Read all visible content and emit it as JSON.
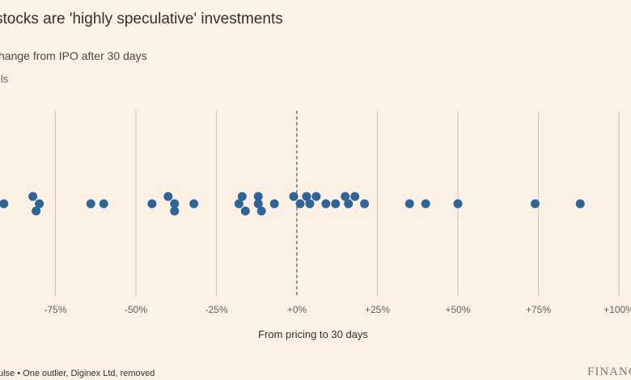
{
  "header": {
    "title": "stocks are 'highly speculative' investments",
    "subtitle": "hange from IPO after 30 days",
    "legend_fragment": "ils"
  },
  "footer": {
    "source": "ulse • One outlier, Diginex Ltd, removed",
    "brand": "FINANC"
  },
  "chart_data": {
    "type": "scatter",
    "title": "stocks are 'highly speculative' investments",
    "subtitle": "hange from IPO after 30 days",
    "xlabel": "From pricing to 30 days",
    "ylabel": "",
    "xlim": [
      -92,
      100
    ],
    "xticks": [
      -75,
      -50,
      -25,
      0,
      25,
      50,
      75,
      100
    ],
    "xtick_labels": [
      "-75%",
      "-50%",
      "-25%",
      "+0%",
      "+25%",
      "+50%",
      "+75%",
      "+100%"
    ],
    "reference_line": 0,
    "grid": "vertical",
    "marker_color": "#2e6496",
    "series": [
      {
        "values": [
          {
            "x": -91,
            "lane": 0
          },
          {
            "x": -82,
            "lane": 1
          },
          {
            "x": -80,
            "lane": 0
          },
          {
            "x": -81,
            "lane": -1
          },
          {
            "x": -64,
            "lane": 0
          },
          {
            "x": -60,
            "lane": 0
          },
          {
            "x": -45,
            "lane": 0
          },
          {
            "x": -40,
            "lane": 1
          },
          {
            "x": -38,
            "lane": 0
          },
          {
            "x": -38,
            "lane": -1
          },
          {
            "x": -32,
            "lane": 0
          },
          {
            "x": -17,
            "lane": 1
          },
          {
            "x": -18,
            "lane": 0
          },
          {
            "x": -16,
            "lane": -1
          },
          {
            "x": -12,
            "lane": 1
          },
          {
            "x": -12,
            "lane": 0
          },
          {
            "x": -11,
            "lane": -1
          },
          {
            "x": -7,
            "lane": 0
          },
          {
            "x": -1,
            "lane": 1
          },
          {
            "x": 1,
            "lane": 0
          },
          {
            "x": 3,
            "lane": 1
          },
          {
            "x": 4,
            "lane": 0
          },
          {
            "x": 6,
            "lane": 1
          },
          {
            "x": 9,
            "lane": 0
          },
          {
            "x": 12,
            "lane": 0
          },
          {
            "x": 15,
            "lane": 1
          },
          {
            "x": 16,
            "lane": 0
          },
          {
            "x": 18,
            "lane": 1
          },
          {
            "x": 21,
            "lane": 0
          },
          {
            "x": 35,
            "lane": 0
          },
          {
            "x": 40,
            "lane": 0
          },
          {
            "x": 50,
            "lane": 0
          },
          {
            "x": 74,
            "lane": 0
          },
          {
            "x": 88,
            "lane": 0
          }
        ]
      }
    ]
  }
}
